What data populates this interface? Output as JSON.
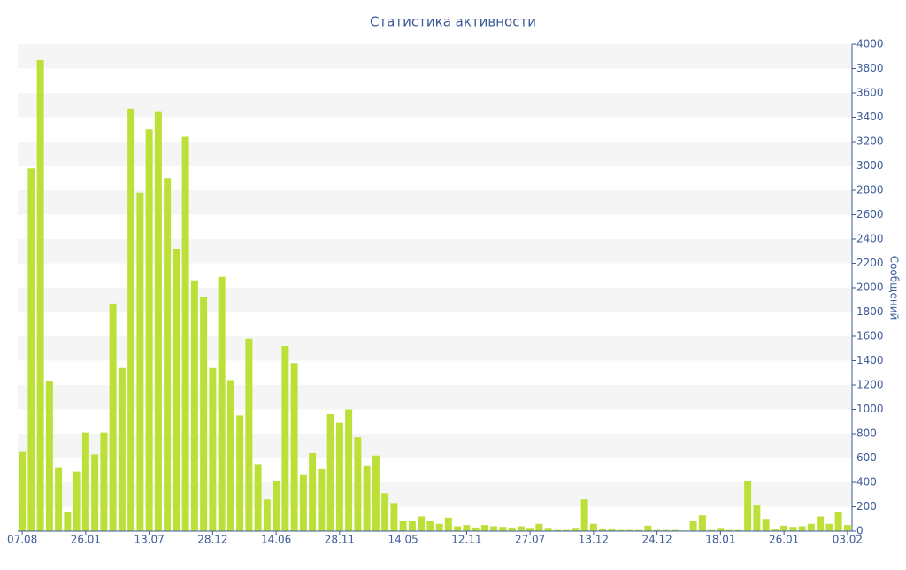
{
  "chart_data": {
    "type": "bar",
    "title": "Статистика активности",
    "y_axis_label": "Сообщений",
    "categories": [
      "07.08",
      null,
      null,
      null,
      null,
      null,
      null,
      "26.01",
      null,
      null,
      null,
      null,
      null,
      null,
      "13.07",
      null,
      null,
      null,
      null,
      null,
      null,
      "28.12",
      null,
      null,
      null,
      null,
      null,
      null,
      "14.06",
      null,
      null,
      null,
      null,
      null,
      null,
      "28.11",
      null,
      null,
      null,
      null,
      null,
      null,
      "14.05",
      null,
      null,
      null,
      null,
      null,
      null,
      "12.11",
      null,
      null,
      null,
      null,
      null,
      null,
      "27.07",
      null,
      null,
      null,
      null,
      null,
      null,
      "13.12",
      null,
      null,
      null,
      null,
      null,
      null,
      "24.12",
      null,
      null,
      null,
      null,
      null,
      null,
      "18.01",
      null,
      null,
      null,
      null,
      null,
      null,
      "26.01",
      null,
      null,
      null,
      null,
      null,
      null,
      "03.02"
    ],
    "values": [
      650,
      2980,
      3870,
      1230,
      520,
      160,
      490,
      810,
      630,
      810,
      1870,
      1340,
      3470,
      2780,
      3300,
      3450,
      2900,
      2320,
      3240,
      2060,
      1920,
      1340,
      2090,
      1240,
      950,
      1580,
      550,
      260,
      410,
      1520,
      1380,
      460,
      640,
      510,
      960,
      890,
      1000,
      770,
      540,
      620,
      310,
      230,
      80,
      80,
      120,
      80,
      60,
      110,
      40,
      50,
      30,
      50,
      40,
      35,
      30,
      40,
      20,
      60,
      20,
      10,
      10,
      20,
      260,
      60,
      15,
      15,
      10,
      10,
      10,
      45,
      10,
      10,
      10,
      5,
      80,
      130,
      10,
      20,
      10,
      10,
      410,
      210,
      100,
      15,
      45,
      35,
      40,
      60,
      120,
      60,
      160,
      50
    ],
    "color": "#bde039",
    "ylim": [
      0,
      4000
    ],
    "yticks": [
      0,
      200,
      400,
      600,
      800,
      1000,
      1200,
      1400,
      1600,
      1800,
      2000,
      2200,
      2400,
      2600,
      2800,
      3000,
      3200,
      3400,
      3600,
      3800,
      4000
    ],
    "grid": true,
    "y_axis_side": "right"
  }
}
